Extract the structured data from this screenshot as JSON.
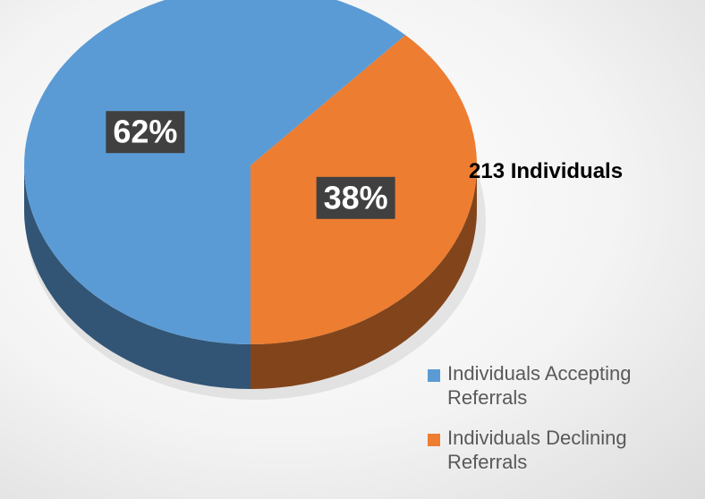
{
  "chart_data": {
    "type": "pie",
    "categories": [
      "Individuals Accepting Referrals",
      "Individuals Declining Referrals"
    ],
    "values": [
      62,
      38
    ],
    "value_labels": [
      "62%",
      "38%"
    ],
    "colors": [
      "#5b9bd5",
      "#ed7d31"
    ],
    "annotation": "213 Individuals",
    "legend": "right"
  }
}
